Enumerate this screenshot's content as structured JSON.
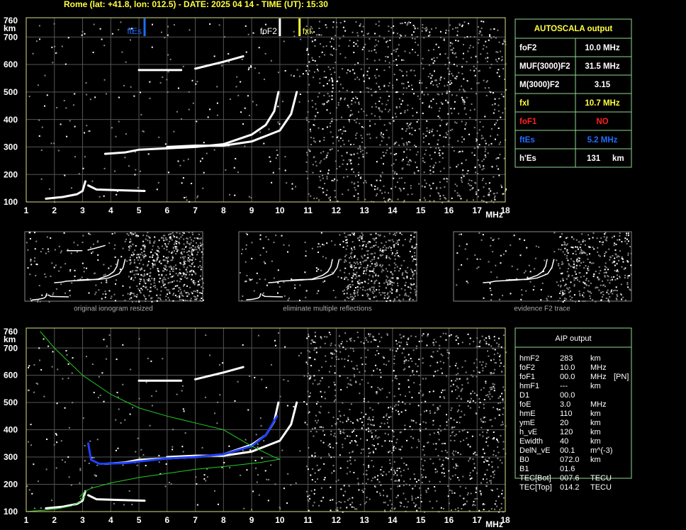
{
  "header": {
    "title": "Rome (lat: +41.8, lon: 012.5) - DATE: 2025 04 14 - TIME (UT): 15:30"
  },
  "axes": {
    "xlim": [
      1,
      18
    ],
    "ylim": [
      100,
      760
    ],
    "xticks": [
      1,
      2,
      3,
      4,
      5,
      6,
      7,
      8,
      9,
      10,
      11,
      12,
      13,
      14,
      15,
      16,
      17,
      18
    ],
    "yticks": [
      100,
      200,
      300,
      400,
      500,
      600,
      700,
      760
    ],
    "x_unit": "MHz",
    "y_unit": "km"
  },
  "top_plot": {
    "markers": [
      {
        "label": "ftEs",
        "value": 5.2,
        "color": "#1e6fff"
      },
      {
        "label": "foF2",
        "value": 10.0,
        "color": "#ffffff"
      },
      {
        "label": "fxI",
        "value": 10.7,
        "color": "#ffff40"
      }
    ],
    "traces": [
      {
        "color": "#ffffff",
        "x": [
          1.7,
          2.3,
          2.8,
          3.0,
          3.1
        ],
        "y": [
          112,
          118,
          128,
          140,
          175
        ]
      },
      {
        "color": "#ffffff",
        "x": [
          3.2,
          3.5,
          4.2,
          5.2
        ],
        "y": [
          160,
          145,
          143,
          140
        ]
      },
      {
        "color": "#ffffff",
        "x": [
          3.8,
          4.5,
          5,
          6,
          7,
          8,
          9,
          9.5,
          9.8,
          9.95
        ],
        "y": [
          275,
          280,
          290,
          295,
          300,
          310,
          345,
          380,
          430,
          500
        ]
      },
      {
        "color": "#ffffff",
        "x": [
          6,
          7,
          8,
          9,
          10,
          10.4,
          10.6
        ],
        "y": [
          300,
          305,
          305,
          320,
          360,
          420,
          500
        ]
      },
      {
        "color": "#ffffff",
        "x": [
          5,
          5.8,
          6.5
        ],
        "y": [
          580,
          580,
          580
        ]
      },
      {
        "color": "#ffffff",
        "x": [
          7,
          8,
          8.7
        ],
        "y": [
          585,
          610,
          630
        ]
      }
    ]
  },
  "thumbnails": [
    {
      "caption": "original ionogram resized"
    },
    {
      "caption": "eliminate multiple reflections"
    },
    {
      "caption": "evidence F2 trace"
    }
  ],
  "autoscala": {
    "title": "AUTOSCALA output",
    "rows": [
      {
        "cells": [
          "foF2",
          "10.0 MHz"
        ],
        "color": "#ffffff"
      },
      {
        "cells": [
          "MUF(3000)F2",
          "31.5 MHz"
        ],
        "color": "#ffffff"
      },
      {
        "cells": [
          "M(3000)F2",
          "3.15"
        ],
        "color": "#ffffff"
      },
      {
        "cells": [
          "fxI",
          "10.7 MHz"
        ],
        "color": "#ffff40"
      },
      {
        "cells": [
          "foF1",
          "NO"
        ],
        "color": "#ff2020"
      },
      {
        "cells": [
          "ftEs",
          "5.2 MHz"
        ],
        "color": "#1e6fff"
      },
      {
        "cells": [
          "h'Es",
          "131",
          "km"
        ],
        "color": "#ffffff"
      }
    ]
  },
  "bottom_plot": {
    "traces": [
      {
        "color": "#ffffff",
        "x": [
          1.7,
          2.3,
          2.8,
          3.0,
          3.1
        ],
        "y": [
          112,
          118,
          128,
          140,
          175
        ]
      },
      {
        "color": "#ffffff",
        "x": [
          3.2,
          3.5,
          4.2,
          5.2
        ],
        "y": [
          160,
          145,
          143,
          140
        ]
      },
      {
        "color": "#ffffff",
        "x": [
          3.8,
          4.5,
          5,
          6,
          7,
          8,
          9,
          9.5,
          9.8,
          9.95
        ],
        "y": [
          275,
          280,
          290,
          295,
          300,
          310,
          345,
          380,
          430,
          500
        ]
      },
      {
        "color": "#ffffff",
        "x": [
          6,
          7,
          8,
          9,
          10,
          10.4,
          10.6
        ],
        "y": [
          300,
          305,
          305,
          320,
          360,
          420,
          500
        ]
      },
      {
        "color": "#ffffff",
        "x": [
          5,
          5.8,
          6.5
        ],
        "y": [
          580,
          580,
          580
        ]
      },
      {
        "color": "#ffffff",
        "x": [
          7,
          8,
          8.7
        ],
        "y": [
          585,
          610,
          630
        ]
      },
      {
        "color": "#2040ff",
        "x": [
          3.2,
          3.3,
          3.6,
          4.5,
          6,
          7,
          8,
          9,
          9.5,
          9.9
        ],
        "y": [
          350,
          290,
          275,
          278,
          295,
          300,
          310,
          340,
          380,
          450
        ]
      },
      {
        "color": "#22cc22",
        "x": [
          1.5,
          2,
          3,
          4,
          5,
          6,
          7,
          8,
          9,
          9.8,
          10,
          9.3,
          8,
          7,
          6,
          5,
          4,
          3.3,
          3.1,
          2.9
        ],
        "y": [
          760,
          700,
          600,
          530,
          480,
          450,
          425,
          400,
          340,
          300,
          292,
          280,
          265,
          255,
          240,
          225,
          205,
          185,
          175,
          155
        ]
      },
      {
        "color": "#22cc22",
        "x": [
          1,
          2,
          2.6,
          2.9,
          3.1
        ],
        "y": [
          100,
          108,
          120,
          135,
          160
        ]
      }
    ]
  },
  "aip": {
    "title": "AIP output",
    "rows": [
      [
        "hmF2",
        "283",
        "km"
      ],
      [
        "foF2",
        "10.0",
        "MHz"
      ],
      [
        "foF1",
        "00.0",
        "MHz",
        "[PN]"
      ],
      [
        "hmF1",
        "---",
        "km"
      ],
      [
        "D1",
        "00.0"
      ],
      [
        "foE",
        "3.0",
        "MHz"
      ],
      [
        "hmE",
        "110",
        "km"
      ],
      [
        "ymE",
        "20",
        "km"
      ],
      [
        "h_vE",
        "120",
        "km"
      ],
      [
        "Ewidth",
        "40",
        "km"
      ],
      [
        "DelN_vE",
        "00.1",
        "m^(-3)"
      ],
      [
        "B0",
        "072.0",
        "km"
      ],
      [
        "B1",
        "01.6"
      ],
      [
        "TEC[Bot]",
        "007.6",
        "TECU"
      ],
      [
        "TEC[Top]",
        "014.2",
        "TECU"
      ]
    ]
  }
}
